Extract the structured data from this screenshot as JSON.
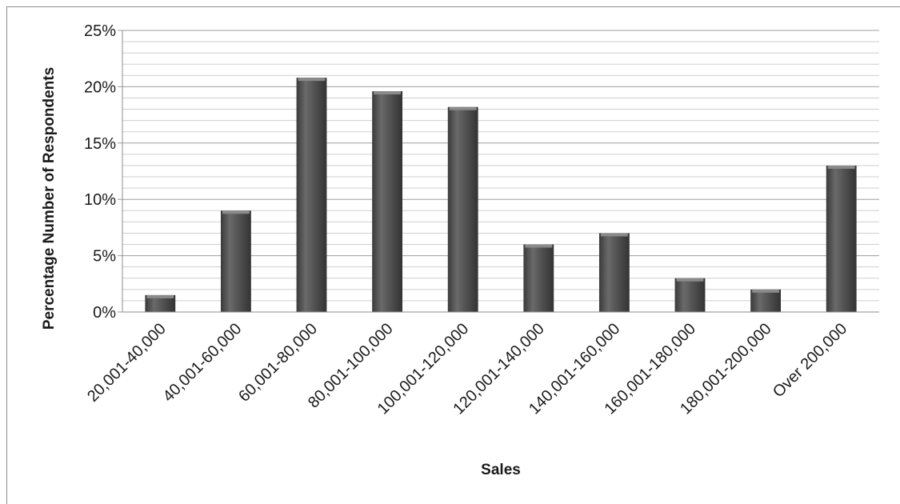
{
  "chart_data": {
    "type": "bar",
    "title": "",
    "xlabel": "Sales",
    "ylabel": "Percentage Number of Respondents",
    "categories": [
      "20,001-40,000",
      "40,001-60,000",
      "60,001-80,000",
      "80,001-100,000",
      "100,001-120,000",
      "120,001-140,000",
      "140,001-160,000",
      "160,001-180,000",
      "180,001-200,000",
      "Over 200,000"
    ],
    "values": [
      1.5,
      9,
      20.8,
      19.6,
      18.2,
      6,
      7,
      3,
      2,
      13
    ],
    "ylim": [
      0,
      25
    ],
    "yticks": [
      0,
      5,
      10,
      15,
      20,
      25
    ],
    "ytick_labels": [
      "0%",
      "5%",
      "10%",
      "15%",
      "20%",
      "25%"
    ],
    "minor_grid_step": 1,
    "grid": true,
    "legend": "none",
    "colors": {
      "bar": "#4d4d4d",
      "bar_highlight": "#8a8a8a",
      "grid_major": "#9e9e9e",
      "grid_minor": "#cfcfcf"
    }
  }
}
